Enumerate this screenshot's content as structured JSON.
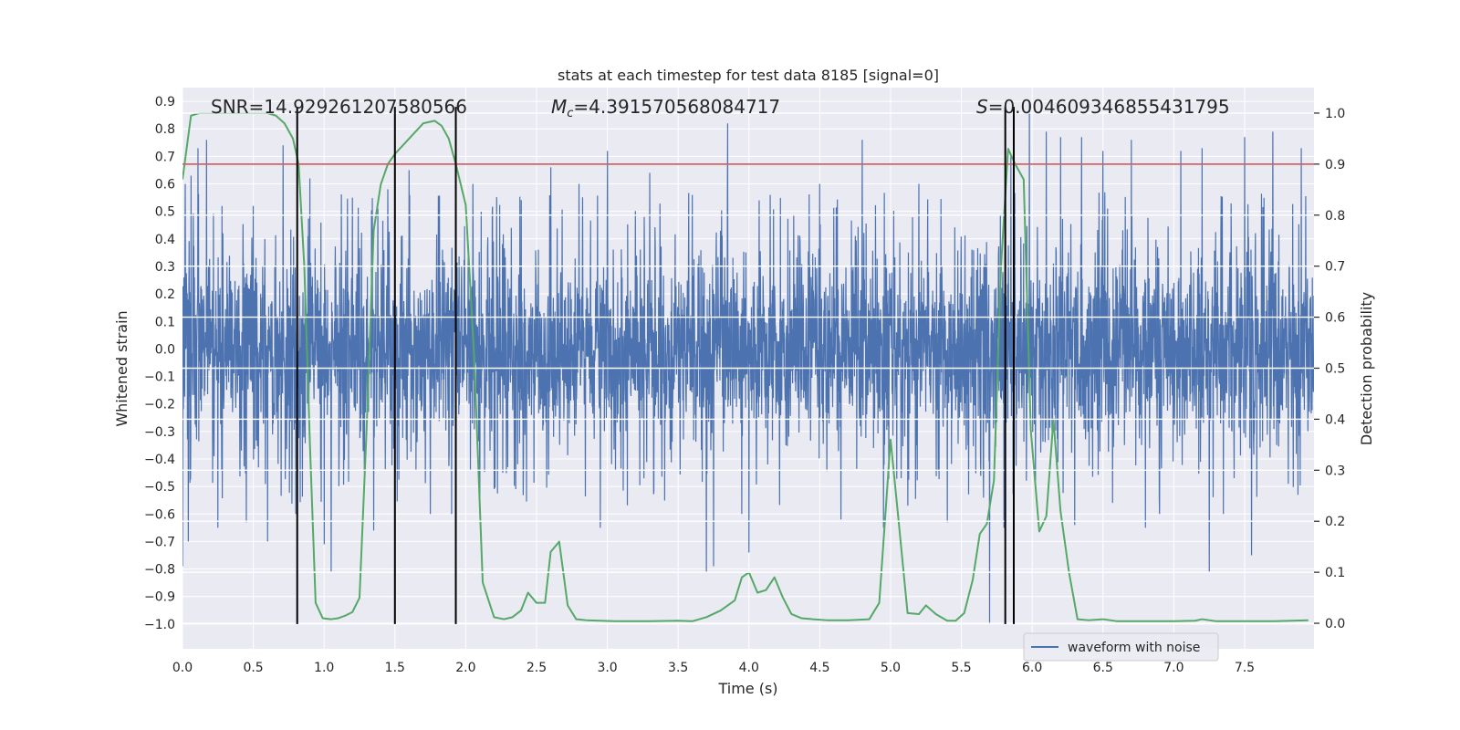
{
  "chart_data": {
    "type": "line",
    "title": "stats at each timestep for test data 8185 [signal=0]",
    "xlabel": "Time (s)",
    "ylabel_left": "Whitened strain",
    "ylabel_right": "Detection probability",
    "xlim": [
      0.0,
      7.99
    ],
    "ylim_left": [
      -1.09,
      0.95
    ],
    "ylim_right": [
      -0.05,
      1.05
    ],
    "x_ticks": [
      0.0,
      0.5,
      1.0,
      1.5,
      2.0,
      2.5,
      3.0,
      3.5,
      4.0,
      4.5,
      5.0,
      5.5,
      6.0,
      6.5,
      7.0,
      7.5
    ],
    "x_tick_labels": [
      "0.0",
      "0.5",
      "1.0",
      "1.5",
      "2.0",
      "2.5",
      "3.0",
      "3.5",
      "4.0",
      "4.5",
      "5.0",
      "5.5",
      "6.0",
      "6.5",
      "7.0",
      "7.5"
    ],
    "y_left_ticks": [
      0.9,
      0.8,
      0.7,
      0.6,
      0.5,
      0.4,
      0.3,
      0.2,
      0.1,
      0.0,
      -0.1,
      -0.2,
      -0.3,
      -0.4,
      -0.5,
      -0.6,
      -0.7,
      -0.8,
      -0.9,
      -1.0
    ],
    "y_left_tick_labels": [
      "0.9",
      "0.8",
      "0.7",
      "0.6",
      "0.5",
      "0.4",
      "0.3",
      "0.2",
      "0.1",
      "0.0",
      "−0.1",
      "−0.2",
      "−0.3",
      "−0.4",
      "−0.5",
      "−0.6",
      "−0.7",
      "−0.8",
      "−0.9",
      "−1.0"
    ],
    "y_right_ticks": [
      1.0,
      0.9,
      0.8,
      0.7,
      0.6,
      0.5,
      0.4,
      0.3,
      0.2,
      0.1,
      0.0
    ],
    "y_right_tick_labels": [
      "1.0",
      "0.9",
      "0.8",
      "0.7",
      "0.6",
      "0.5",
      "0.4",
      "0.3",
      "0.2",
      "0.1",
      "0.0"
    ],
    "annotations": {
      "snr": "SNR=14.929261207580566",
      "mc_symbol": "M",
      "mc_sub": "c",
      "mc_value": "=4.391570568084717",
      "s_symbol": "S",
      "s_value": "=0.004609346855431795"
    },
    "threshold": {
      "axis": "right",
      "value": 0.9,
      "color": "#c44e52"
    },
    "vertical_lines": [
      0.81,
      1.5,
      1.93,
      5.81,
      5.87
    ],
    "vertical_line_range_left": [
      -1.0,
      0.88
    ],
    "legend": {
      "entries": [
        "waveform with noise"
      ],
      "location": "lower right"
    },
    "colors": {
      "waveform": "#4c72b0",
      "probability": "#55a868",
      "background": "#eaeaf2",
      "grid": "#ffffff",
      "vline": "#000000"
    },
    "series": [
      {
        "name": "waveform with noise",
        "axis": "left",
        "style": "dense-noise",
        "core_amplitude": 0.3,
        "peaks": [
          [
            0.0,
            -0.79
          ],
          [
            0.02,
            0.6
          ],
          [
            0.04,
            -0.7
          ],
          [
            0.06,
            0.63
          ],
          [
            0.11,
            0.73
          ],
          [
            0.17,
            0.76
          ],
          [
            0.25,
            -0.65
          ],
          [
            0.45,
            -0.63
          ],
          [
            0.5,
            0.52
          ],
          [
            0.6,
            -0.7
          ],
          [
            0.71,
            0.74
          ],
          [
            0.8,
            -0.6
          ],
          [
            0.9,
            0.62
          ],
          [
            1.0,
            -0.71
          ],
          [
            1.05,
            -0.81
          ],
          [
            1.2,
            0.55
          ],
          [
            1.35,
            -0.66
          ],
          [
            1.45,
            0.58
          ],
          [
            1.6,
            0.65
          ],
          [
            1.75,
            -0.6
          ],
          [
            1.9,
            -0.6
          ],
          [
            2.05,
            0.6
          ],
          [
            2.1,
            -0.55
          ],
          [
            2.6,
            0.66
          ],
          [
            2.8,
            0.6
          ],
          [
            2.95,
            -0.65
          ],
          [
            3.0,
            0.72
          ],
          [
            3.3,
            0.64
          ],
          [
            3.6,
            0.56
          ],
          [
            3.7,
            -0.81
          ],
          [
            3.75,
            -0.79
          ],
          [
            3.85,
            0.82
          ],
          [
            3.95,
            -0.6
          ],
          [
            4.0,
            -0.74
          ],
          [
            4.15,
            0.56
          ],
          [
            4.5,
            0.6
          ],
          [
            4.65,
            -0.62
          ],
          [
            4.8,
            0.76
          ],
          [
            4.95,
            -0.65
          ],
          [
            5.2,
            0.6
          ],
          [
            5.4,
            -0.63
          ],
          [
            5.7,
            -1.0
          ],
          [
            5.8,
            -0.65
          ],
          [
            5.85,
            0.7
          ],
          [
            5.98,
            0.9
          ],
          [
            6.1,
            0.79
          ],
          [
            6.2,
            0.77
          ],
          [
            6.35,
            0.77
          ],
          [
            6.3,
            -0.64
          ],
          [
            6.5,
            0.72
          ],
          [
            6.7,
            0.76
          ],
          [
            6.8,
            -0.65
          ],
          [
            6.9,
            -0.6
          ],
          [
            7.05,
            0.72
          ],
          [
            7.2,
            0.73
          ],
          [
            7.25,
            -0.81
          ],
          [
            7.35,
            -0.6
          ],
          [
            7.5,
            0.77
          ],
          [
            7.55,
            -0.75
          ],
          [
            7.7,
            0.79
          ],
          [
            7.9,
            0.73
          ]
        ]
      },
      {
        "name": "detection probability",
        "axis": "right",
        "x": [
          0.0,
          0.06,
          0.12,
          0.2,
          0.3,
          0.4,
          0.5,
          0.6,
          0.66,
          0.72,
          0.78,
          0.82,
          0.86,
          0.9,
          0.94,
          0.99,
          1.05,
          1.1,
          1.15,
          1.2,
          1.25,
          1.3,
          1.35,
          1.4,
          1.45,
          1.5,
          1.6,
          1.7,
          1.78,
          1.83,
          1.88,
          1.93,
          2.0,
          2.06,
          2.12,
          2.2,
          2.27,
          2.33,
          2.39,
          2.44,
          2.5,
          2.56,
          2.6,
          2.66,
          2.72,
          2.78,
          2.85,
          2.95,
          3.05,
          3.15,
          3.3,
          3.5,
          3.6,
          3.7,
          3.8,
          3.9,
          3.95,
          4.0,
          4.06,
          4.12,
          4.18,
          4.24,
          4.3,
          4.37,
          4.45,
          4.55,
          4.7,
          4.85,
          4.92,
          5.0,
          5.05,
          5.12,
          5.2,
          5.25,
          5.32,
          5.4,
          5.46,
          5.52,
          5.58,
          5.63,
          5.68,
          5.73,
          5.78,
          5.83,
          5.88,
          5.94,
          5.99,
          6.05,
          6.1,
          6.15,
          6.2,
          6.26,
          6.32,
          6.4,
          6.5,
          6.6,
          6.8,
          7.0,
          7.15,
          7.2,
          7.3,
          7.5,
          7.7,
          7.95
        ],
        "y": [
          0.87,
          0.995,
          1.0,
          1.0,
          1.0,
          1.0,
          1.0,
          1.0,
          0.995,
          0.98,
          0.95,
          0.9,
          0.7,
          0.35,
          0.04,
          0.01,
          0.008,
          0.01,
          0.015,
          0.022,
          0.05,
          0.38,
          0.77,
          0.86,
          0.9,
          0.92,
          0.95,
          0.98,
          0.985,
          0.975,
          0.95,
          0.9,
          0.82,
          0.52,
          0.08,
          0.012,
          0.008,
          0.012,
          0.025,
          0.06,
          0.04,
          0.04,
          0.14,
          0.16,
          0.035,
          0.008,
          0.006,
          0.005,
          0.004,
          0.004,
          0.004,
          0.005,
          0.004,
          0.012,
          0.025,
          0.045,
          0.09,
          0.1,
          0.06,
          0.065,
          0.09,
          0.05,
          0.018,
          0.01,
          0.008,
          0.006,
          0.006,
          0.008,
          0.04,
          0.36,
          0.22,
          0.02,
          0.018,
          0.035,
          0.018,
          0.005,
          0.005,
          0.02,
          0.085,
          0.175,
          0.195,
          0.28,
          0.7,
          0.93,
          0.9,
          0.87,
          0.38,
          0.18,
          0.21,
          0.4,
          0.22,
          0.1,
          0.008,
          0.006,
          0.008,
          0.004,
          0.004,
          0.004,
          0.005,
          0.008,
          0.004,
          0.004,
          0.004,
          0.006
        ]
      }
    ]
  }
}
